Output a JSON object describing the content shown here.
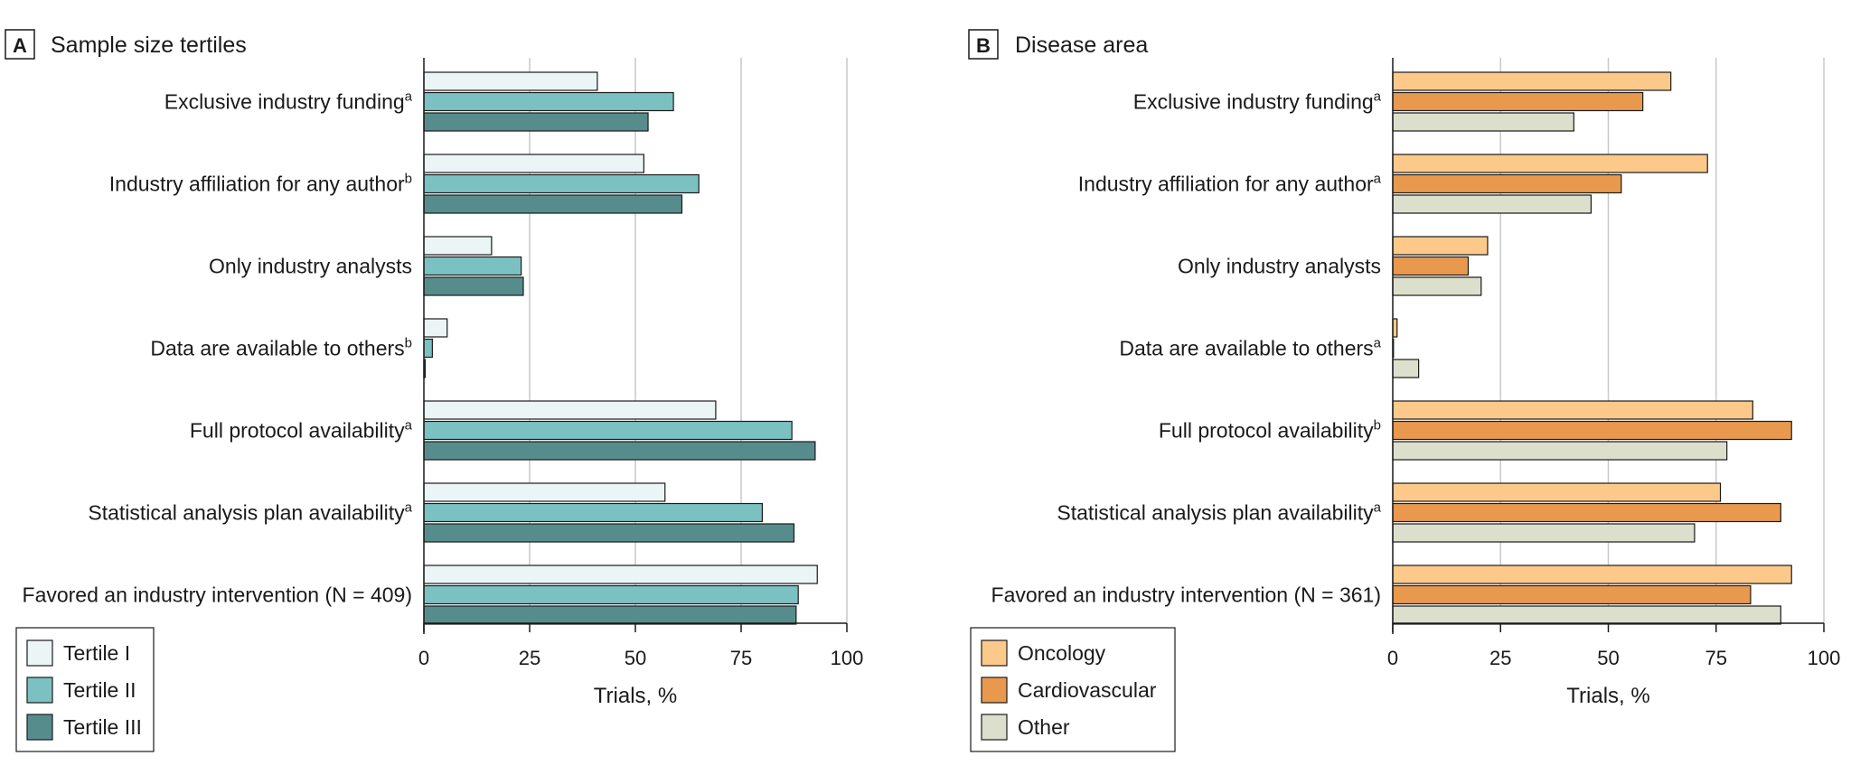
{
  "chart_data": [
    {
      "type": "bar",
      "orientation": "horizontal",
      "panel_letter": "A",
      "title": "Sample size tertiles",
      "xlabel": "Trials, %",
      "ylabel": "",
      "xlim": [
        0,
        100
      ],
      "xticks": [
        "0",
        "25",
        "50",
        "75",
        "100"
      ],
      "grid": true,
      "legend_position": "bottom-left",
      "categories": [
        {
          "label": "Exclusive industry funding",
          "sup": "a"
        },
        {
          "label": "Industry affiliation for any author",
          "sup": "b"
        },
        {
          "label": "Only industry analysts",
          "sup": ""
        },
        {
          "label": "Data are available to others",
          "sup": "b"
        },
        {
          "label": "Full protocol availability",
          "sup": "a"
        },
        {
          "label": "Statistical analysis plan availability",
          "sup": "a"
        },
        {
          "label": "Favored an industry intervention (N = 409)",
          "sup": ""
        }
      ],
      "series": [
        {
          "name": "Tertile I",
          "color": "#ebf5f5",
          "values": [
            41,
            52,
            16,
            5.5,
            69,
            57,
            93
          ]
        },
        {
          "name": "Tertile II",
          "color": "#7cc1c1",
          "values": [
            59,
            65,
            23,
            2,
            87,
            80,
            88.5
          ]
        },
        {
          "name": "Tertile III",
          "color": "#578c8c",
          "values": [
            53,
            61,
            23.5,
            0.3,
            92.5,
            87.5,
            88
          ]
        }
      ]
    },
    {
      "type": "bar",
      "orientation": "horizontal",
      "panel_letter": "B",
      "title": "Disease area",
      "xlabel": "Trials, %",
      "ylabel": "",
      "xlim": [
        0,
        100
      ],
      "xticks": [
        "0",
        "25",
        "50",
        "75",
        "100"
      ],
      "grid": true,
      "legend_position": "bottom-left",
      "categories": [
        {
          "label": "Exclusive industry funding",
          "sup": "a"
        },
        {
          "label": "Industry affiliation for any author",
          "sup": "a"
        },
        {
          "label": "Only industry analysts",
          "sup": ""
        },
        {
          "label": "Data are available to others",
          "sup": "a"
        },
        {
          "label": "Full protocol availability",
          "sup": "b"
        },
        {
          "label": "Statistical analysis plan availability",
          "sup": "a"
        },
        {
          "label": "Favored an industry intervention (N = 361)",
          "sup": ""
        }
      ],
      "series": [
        {
          "name": "Oncology",
          "color": "#fdc98a",
          "values": [
            64.5,
            73,
            22,
            1,
            83.5,
            76,
            92.5
          ]
        },
        {
          "name": "Cardiovascular",
          "color": "#e8994e",
          "values": [
            58,
            53,
            17.5,
            0,
            92.5,
            90,
            83
          ]
        },
        {
          "name": "Other",
          "color": "#dcdfcc",
          "values": [
            42,
            46,
            20.5,
            6,
            77.5,
            70,
            90
          ]
        }
      ]
    }
  ]
}
